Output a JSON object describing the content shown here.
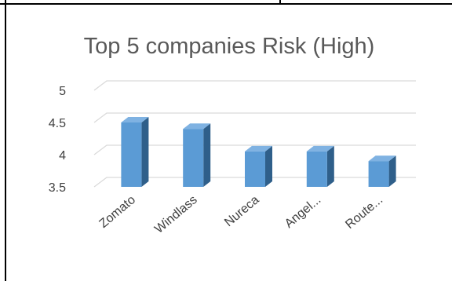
{
  "chart_data": {
    "type": "bar",
    "title": "Top 5 companies Risk (High)",
    "categories": [
      "Zomato",
      "Windlass",
      "Nureca",
      "Angel...",
      "Route..."
    ],
    "values": [
      4.5,
      4.4,
      4.05,
      4.05,
      3.9
    ],
    "ylim": [
      3.5,
      5
    ],
    "yticks": [
      "5",
      "4.5",
      "4",
      "3.5"
    ],
    "ytick_values": [
      5,
      4.5,
      4,
      3.5
    ],
    "xlabel": "",
    "ylabel": "",
    "grid": true,
    "bar_colors": {
      "front": "#5B9BD5",
      "side": "#2F5F8A",
      "top": "#7FB2E2"
    },
    "title_color": "#595959",
    "tick_color": "#404040"
  }
}
